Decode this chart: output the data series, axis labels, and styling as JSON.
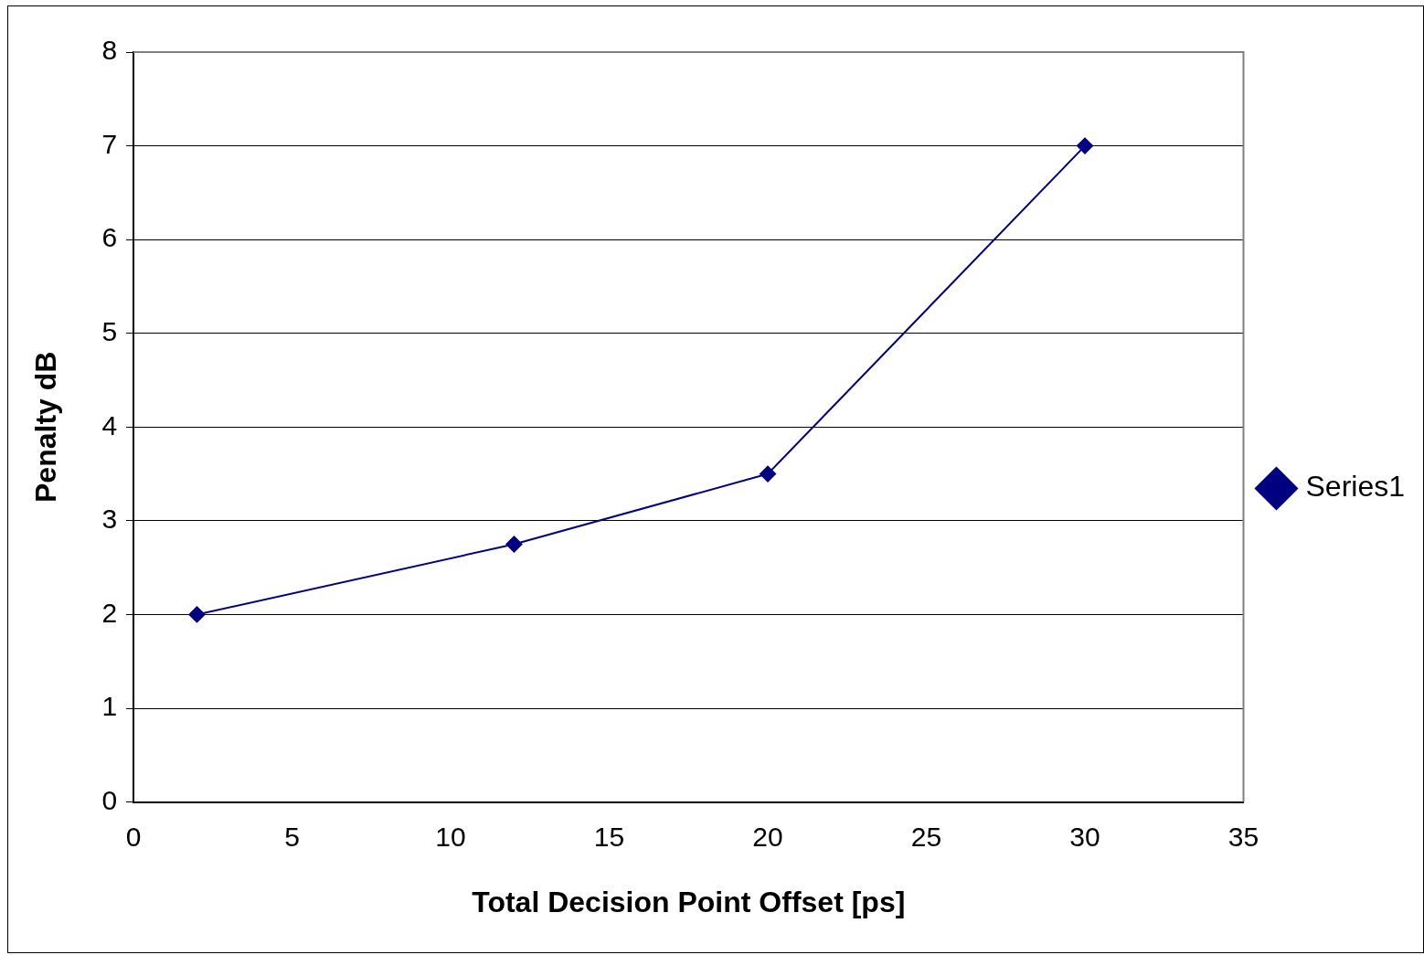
{
  "chart_data": {
    "type": "line",
    "xlabel": "Total Decision Point Offset [ps]",
    "ylabel": "Penalty dB",
    "x": [
      2,
      12,
      20,
      30
    ],
    "series": [
      {
        "name": "Series1",
        "color": "#000080",
        "values": [
          2,
          2.75,
          3.5,
          7
        ]
      }
    ],
    "xlim": [
      0,
      35
    ],
    "xticks": [
      0,
      5,
      10,
      15,
      20,
      25,
      30,
      35
    ],
    "ylim": [
      0,
      8
    ],
    "yticks": [
      0,
      1,
      2,
      3,
      4,
      5,
      6,
      7,
      8
    ],
    "grid": "y",
    "legend": "right",
    "marker": "diamond",
    "line_style": "solid"
  }
}
